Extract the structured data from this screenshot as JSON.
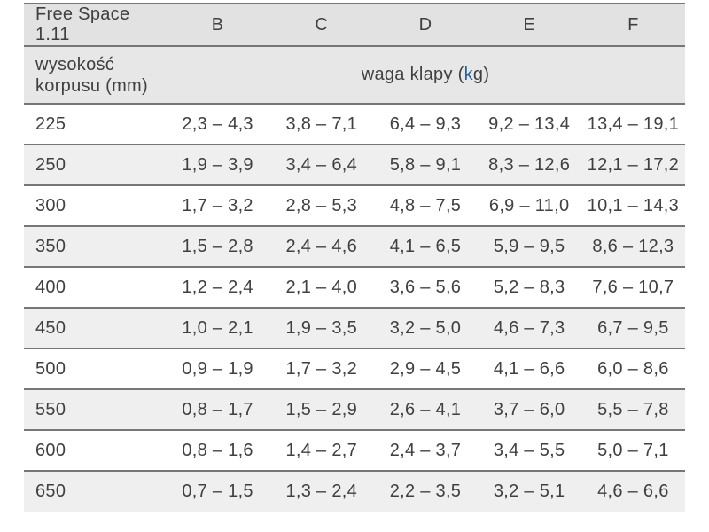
{
  "table": {
    "title": "Free Space 1.11",
    "columns": [
      "B",
      "C",
      "D",
      "E",
      "F"
    ],
    "row_header": {
      "line1": "wysokość",
      "line2": "korpusu (mm)"
    },
    "span_header": {
      "prefix": "waga klapy (",
      "highlight": "k",
      "suffix": "g)"
    },
    "rows": [
      {
        "height": "225",
        "values": [
          "2,3 – 4,3",
          "3,8 – 7,1",
          "6,4 – 9,3",
          "9,2 – 13,4",
          "13,4 – 19,1"
        ]
      },
      {
        "height": "250",
        "values": [
          "1,9 – 3,9",
          "3,4 – 6,4",
          "5,8 – 9,1",
          "8,3 – 12,6",
          "12,1 – 17,2"
        ]
      },
      {
        "height": "300",
        "values": [
          "1,7 – 3,2",
          "2,8 – 5,3",
          "4,8 – 7,5",
          "6,9 – 11,0",
          "10,1 – 14,3"
        ]
      },
      {
        "height": "350",
        "values": [
          "1,5 – 2,8",
          "2,4 – 4,6",
          "4,1 – 6,5",
          "5,9 – 9,5",
          "8,6 – 12,3"
        ]
      },
      {
        "height": "400",
        "values": [
          "1,2 – 2,4",
          "2,1 – 4,0",
          "3,6 – 5,6",
          "5,2 – 8,3",
          "7,6 – 10,7"
        ]
      },
      {
        "height": "450",
        "values": [
          "1,0 – 2,1",
          "1,9 – 3,5",
          "3,2 – 5,0",
          "4,6 – 7,3",
          "6,7 – 9,5"
        ]
      },
      {
        "height": "500",
        "values": [
          "0,9 – 1,9",
          "1,7 – 3,2",
          "2,9 – 4,5",
          "4,1 – 6,6",
          "6,0 – 8,6"
        ]
      },
      {
        "height": "550",
        "values": [
          "0,8 – 1,7",
          "1,5 – 2,9",
          "2,6 – 4,1",
          "3,7 – 6,0",
          "5,5 – 7,8"
        ]
      },
      {
        "height": "600",
        "values": [
          "0,8 – 1,6",
          "1,4 – 2,7",
          "2,4 – 3,7",
          "3,4 – 5,5",
          "5,0 – 7,1"
        ]
      },
      {
        "height": "650",
        "values": [
          "0,7 – 1,5",
          "1,3 – 2,4",
          "2,2 – 3,5",
          "3,2 – 5,1",
          "4,6 – 6,6"
        ]
      }
    ],
    "colors": {
      "accent_blue": "#1e63a5",
      "header_bg": "#e2e2e2",
      "subheader_bg": "#e7e7e7",
      "alt_row_bg": "#efefef",
      "border": "#767676",
      "text": "#404042"
    }
  }
}
